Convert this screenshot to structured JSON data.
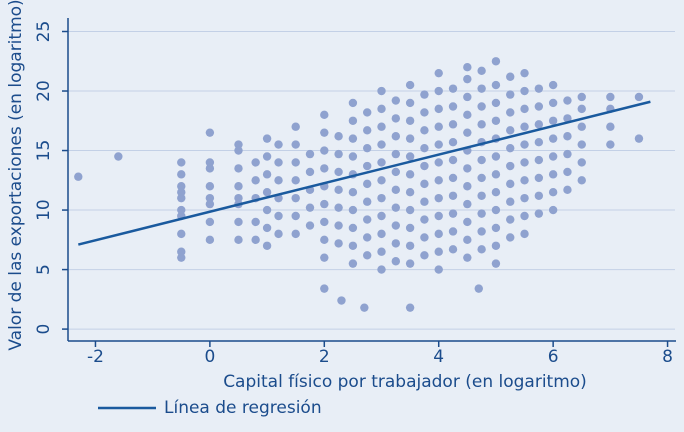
{
  "chart_data": {
    "type": "scatter",
    "x_label": "Capital físico por trabajador (en logaritmo)",
    "y_label": "Valor de las exportaciones (en logaritmo)",
    "xlim": [
      -2.48,
      8.13
    ],
    "ylim": [
      -1,
      26
    ],
    "xticks": [
      -2,
      0,
      2,
      4,
      6,
      8
    ],
    "yticks": [
      0,
      5,
      10,
      15,
      20,
      25
    ],
    "grid": true,
    "series": [
      {
        "type": "scatter",
        "color": "#8fa2cf",
        "x": [
          -2.3,
          -1.6,
          2.0,
          2.3,
          2.7,
          3.5,
          4.7,
          -0.5,
          -0.5,
          -0.5,
          -0.5,
          -0.5,
          -0.5,
          -0.5,
          -0.5,
          -0.5,
          -0.5,
          0,
          0,
          0,
          0,
          0,
          0,
          0,
          0,
          0.5,
          0.5,
          0.5,
          0.5,
          0.5,
          0.5,
          0.5,
          0.5,
          0.8,
          0.8,
          0.8,
          0.8,
          0.8,
          1,
          1,
          1,
          1,
          1,
          1,
          1,
          1.2,
          1.2,
          1.2,
          1.2,
          1.2,
          1.2,
          1.5,
          1.5,
          1.5,
          1.5,
          1.5,
          1.5,
          1.5,
          1.75,
          1.75,
          1.75,
          1.75,
          1.75,
          2,
          2,
          2,
          2,
          2,
          2,
          2,
          2,
          2,
          2.25,
          2.25,
          2.25,
          2.25,
          2.25,
          2.25,
          2.25,
          2.5,
          2.5,
          2.5,
          2.5,
          2.5,
          2.5,
          2.5,
          2.5,
          2.5,
          2.5,
          2.75,
          2.75,
          2.75,
          2.75,
          2.75,
          2.75,
          2.75,
          2.75,
          2.75,
          3,
          3,
          3,
          3,
          3,
          3,
          3,
          3,
          3,
          3,
          3,
          3.25,
          3.25,
          3.25,
          3.25,
          3.25,
          3.25,
          3.25,
          3.25,
          3.25,
          3.25,
          3.5,
          3.5,
          3.5,
          3.5,
          3.5,
          3.5,
          3.5,
          3.5,
          3.5,
          3.5,
          3.5,
          3.75,
          3.75,
          3.75,
          3.75,
          3.75,
          3.75,
          3.75,
          3.75,
          3.75,
          3.75,
          4,
          4,
          4,
          4,
          4,
          4,
          4,
          4,
          4,
          4,
          4,
          4,
          4.25,
          4.25,
          4.25,
          4.25,
          4.25,
          4.25,
          4.25,
          4.25,
          4.25,
          4.25,
          4.5,
          4.5,
          4.5,
          4.5,
          4.5,
          4.5,
          4.5,
          4.5,
          4.5,
          4.5,
          4.5,
          4.5,
          4.75,
          4.75,
          4.75,
          4.75,
          4.75,
          4.75,
          4.75,
          4.75,
          4.75,
          4.75,
          4.75,
          5,
          5,
          5,
          5,
          5,
          5,
          5,
          5,
          5,
          5,
          5,
          5,
          5.25,
          5.25,
          5.25,
          5.25,
          5.25,
          5.25,
          5.25,
          5.25,
          5.25,
          5.25,
          5.5,
          5.5,
          5.5,
          5.5,
          5.5,
          5.5,
          5.5,
          5.5,
          5.5,
          5.5,
          5.75,
          5.75,
          5.75,
          5.75,
          5.75,
          5.75,
          5.75,
          5.75,
          6,
          6,
          6,
          6,
          6,
          6,
          6,
          6,
          6.25,
          6.25,
          6.25,
          6.25,
          6.25,
          6.25,
          6.5,
          6.5,
          6.5,
          6.5,
          6.5,
          6.5,
          7,
          7,
          7,
          7,
          7.5,
          7.5
        ],
        "values": [
          12.8,
          14.5,
          3.4,
          2.4,
          1.8,
          1.8,
          3.4,
          6,
          6.5,
          8,
          9.5,
          11,
          12,
          13,
          14,
          11.5,
          10,
          7.5,
          9,
          10.5,
          12,
          13.5,
          14,
          16.5,
          11,
          7.5,
          9,
          10.5,
          12,
          13.5,
          15,
          15.5,
          11,
          7.5,
          9,
          11,
          12.5,
          14,
          7,
          8.5,
          10,
          11.5,
          13,
          14.5,
          16,
          8,
          9.5,
          11,
          12.5,
          14,
          15.5,
          8,
          9.5,
          11,
          12.5,
          14,
          15.5,
          17,
          8.7,
          10.2,
          11.7,
          13.2,
          14.7,
          6,
          7.5,
          9,
          10.5,
          12,
          13.5,
          15,
          16.5,
          18,
          7.2,
          8.7,
          10.2,
          11.7,
          13.2,
          14.7,
          16.2,
          5.5,
          7,
          8.5,
          10,
          11.5,
          13,
          14.5,
          16,
          17.5,
          19,
          6.2,
          7.7,
          9.2,
          10.7,
          12.2,
          13.7,
          15.2,
          16.7,
          18.2,
          5,
          6.5,
          8,
          9.5,
          11,
          12.5,
          14,
          15.5,
          17,
          18.5,
          20,
          5.7,
          7.2,
          8.7,
          10.2,
          11.7,
          13.2,
          14.7,
          16.2,
          17.7,
          19.2,
          5.5,
          7,
          8.5,
          10,
          11.5,
          13,
          14.5,
          16,
          17.5,
          19,
          20.5,
          6.2,
          7.7,
          9.2,
          10.7,
          12.2,
          13.7,
          15.2,
          16.7,
          18.2,
          19.7,
          5,
          6.5,
          8,
          9.5,
          11,
          12.5,
          14,
          15.5,
          17,
          18.5,
          20,
          21.5,
          6.7,
          8.2,
          9.7,
          11.2,
          12.7,
          14.2,
          15.7,
          17.2,
          18.7,
          20.2,
          6,
          7.5,
          9,
          10.5,
          12,
          13.5,
          15,
          16.5,
          18,
          19.5,
          21,
          22,
          6.7,
          8.2,
          9.7,
          11.2,
          12.7,
          14.2,
          15.7,
          17.2,
          18.7,
          20.2,
          21.7,
          5.5,
          7,
          8.5,
          10,
          11.5,
          13,
          14.5,
          16,
          17.5,
          19,
          20.5,
          22.5,
          7.7,
          9.2,
          10.7,
          12.2,
          13.7,
          15.2,
          16.7,
          18.2,
          19.7,
          21.2,
          8,
          9.5,
          11,
          12.5,
          14,
          15.5,
          17,
          18.5,
          20,
          21.5,
          9.7,
          11.2,
          12.7,
          14.2,
          15.7,
          17.2,
          18.7,
          20.2,
          10,
          11.5,
          13,
          14.5,
          16,
          17.5,
          19,
          20.5,
          11.7,
          13.2,
          14.7,
          16.2,
          17.7,
          19.2,
          12.5,
          14,
          15.5,
          17,
          18.5,
          19.5,
          15.5,
          17,
          18.5,
          19.5,
          16,
          19.5
        ]
      },
      {
        "type": "line",
        "name": "Línea de regresión",
        "color": "#1a5a9e",
        "x": [
          -2.3,
          7.7
        ],
        "values": [
          7.1,
          19.1
        ]
      }
    ]
  }
}
